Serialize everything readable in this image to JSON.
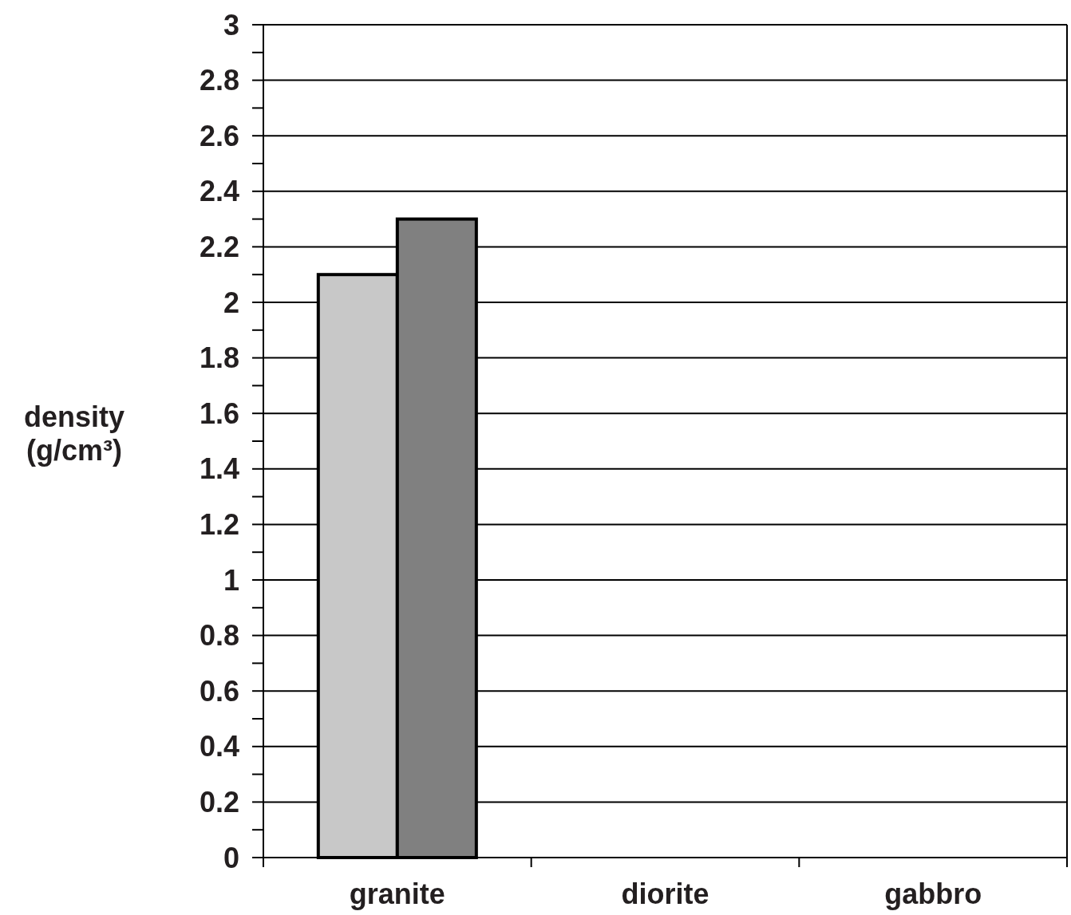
{
  "chart_data": {
    "type": "bar",
    "ylabel": "density (g/cm³)",
    "categories": [
      "granite",
      "diorite",
      "gabbro"
    ],
    "series": [
      {
        "color": "#c8c8c8",
        "values": [
          2.1,
          null,
          null
        ]
      },
      {
        "color": "#808080",
        "values": [
          2.3,
          null,
          null
        ]
      }
    ],
    "ylim": [
      0,
      3
    ],
    "yticks": [
      0,
      {
        "value": 0.1,
        "label": null
      },
      0.2,
      {
        "value": 0.3,
        "label": null
      },
      0.4,
      {
        "value": 0.5,
        "label": null
      },
      0.6,
      {
        "value": 0.7,
        "label": null
      },
      0.8,
      {
        "value": 0.9,
        "label": null
      },
      1,
      {
        "value": 1.1,
        "label": null
      },
      1.2,
      {
        "value": 1.3,
        "label": null
      },
      1.4,
      {
        "value": 1.5,
        "label": null
      },
      1.6,
      {
        "value": 1.7,
        "label": null
      },
      1.8,
      {
        "value": 1.9,
        "label": null
      },
      2,
      {
        "value": 2.1,
        "label": null
      },
      2.2,
      {
        "value": 2.3,
        "label": null
      },
      2.4,
      {
        "value": 2.5,
        "label": null
      },
      2.6,
      {
        "value": 2.7,
        "label": null
      },
      2.8,
      {
        "value": 2.9,
        "label": null
      },
      3
    ],
    "grid": "y"
  }
}
